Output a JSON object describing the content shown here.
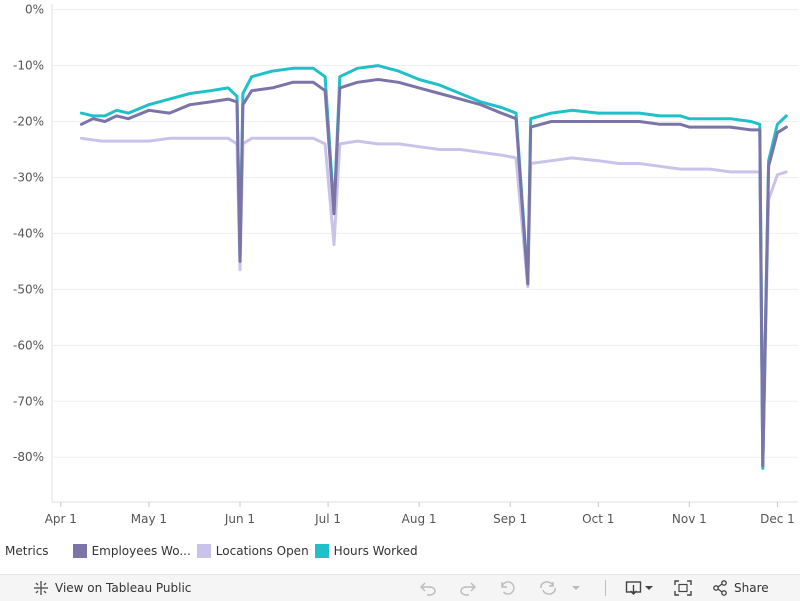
{
  "chart_data": {
    "type": "line",
    "title": "",
    "xlabel": "",
    "ylabel": "",
    "x_range": [
      "2020-03-29",
      "2020-12-08"
    ],
    "ylim": [
      -88,
      1
    ],
    "y_ticks": [
      {
        "value": 0,
        "label": "0%"
      },
      {
        "value": -10,
        "label": "-10%"
      },
      {
        "value": -20,
        "label": "-20%"
      },
      {
        "value": -30,
        "label": "-30%"
      },
      {
        "value": -40,
        "label": "-40%"
      },
      {
        "value": -50,
        "label": "-50%"
      },
      {
        "value": -60,
        "label": "-60%"
      },
      {
        "value": -70,
        "label": "-70%"
      },
      {
        "value": -80,
        "label": "-80%"
      }
    ],
    "x_ticks": [
      {
        "date": "2020-04-01",
        "label": "Apr 1"
      },
      {
        "date": "2020-05-01",
        "label": "May 1"
      },
      {
        "date": "2020-06-01",
        "label": "Jun 1"
      },
      {
        "date": "2020-07-01",
        "label": "Jul 1"
      },
      {
        "date": "2020-08-01",
        "label": "Aug 1"
      },
      {
        "date": "2020-09-01",
        "label": "Sep 1"
      },
      {
        "date": "2020-10-01",
        "label": "Oct 1"
      },
      {
        "date": "2020-11-01",
        "label": "Nov 1"
      },
      {
        "date": "2020-12-01",
        "label": "Dec 1"
      }
    ],
    "grid": true,
    "legend_title": "Metrics",
    "series": [
      {
        "name": "Employees Wo...",
        "color": "#7b74a8",
        "points": [
          [
            "2020-04-08",
            -20.5
          ],
          [
            "2020-04-12",
            -19.5
          ],
          [
            "2020-04-16",
            -20
          ],
          [
            "2020-04-20",
            -19
          ],
          [
            "2020-04-24",
            -19.5
          ],
          [
            "2020-05-01",
            -18
          ],
          [
            "2020-05-08",
            -18.5
          ],
          [
            "2020-05-15",
            -17
          ],
          [
            "2020-05-22",
            -16.5
          ],
          [
            "2020-05-28",
            -16
          ],
          [
            "2020-05-31",
            -16.5
          ],
          [
            "2020-06-01",
            -45
          ],
          [
            "2020-06-02",
            -17
          ],
          [
            "2020-06-05",
            -14.5
          ],
          [
            "2020-06-12",
            -14
          ],
          [
            "2020-06-19",
            -13
          ],
          [
            "2020-06-26",
            -13
          ],
          [
            "2020-06-30",
            -14.5
          ],
          [
            "2020-07-03",
            -36.5
          ],
          [
            "2020-07-05",
            -14
          ],
          [
            "2020-07-11",
            -13
          ],
          [
            "2020-07-18",
            -12.5
          ],
          [
            "2020-07-25",
            -13
          ],
          [
            "2020-08-01",
            -14
          ],
          [
            "2020-08-08",
            -15
          ],
          [
            "2020-08-15",
            -16
          ],
          [
            "2020-08-22",
            -17
          ],
          [
            "2020-08-29",
            -18.5
          ],
          [
            "2020-09-03",
            -19.5
          ],
          [
            "2020-09-07",
            -49
          ],
          [
            "2020-09-08",
            -21
          ],
          [
            "2020-09-15",
            -20
          ],
          [
            "2020-09-22",
            -20
          ],
          [
            "2020-10-01",
            -20
          ],
          [
            "2020-10-08",
            -20
          ],
          [
            "2020-10-15",
            -20
          ],
          [
            "2020-10-22",
            -20.5
          ],
          [
            "2020-10-29",
            -20.5
          ],
          [
            "2020-11-01",
            -21
          ],
          [
            "2020-11-08",
            -21
          ],
          [
            "2020-11-15",
            -21
          ],
          [
            "2020-11-22",
            -21.5
          ],
          [
            "2020-11-25",
            -21.5
          ],
          [
            "2020-11-26",
            -81.5
          ],
          [
            "2020-11-28",
            -28
          ],
          [
            "2020-12-01",
            -22
          ],
          [
            "2020-12-04",
            -21
          ]
        ]
      },
      {
        "name": "Locations Open",
        "color": "#c9c3ec",
        "points": [
          [
            "2020-04-08",
            -23
          ],
          [
            "2020-04-15",
            -23.5
          ],
          [
            "2020-04-22",
            -23.5
          ],
          [
            "2020-05-01",
            -23.5
          ],
          [
            "2020-05-08",
            -23
          ],
          [
            "2020-05-15",
            -23
          ],
          [
            "2020-05-22",
            -23
          ],
          [
            "2020-05-28",
            -23
          ],
          [
            "2020-05-31",
            -24
          ],
          [
            "2020-06-01",
            -46.5
          ],
          [
            "2020-06-02",
            -24
          ],
          [
            "2020-06-05",
            -23
          ],
          [
            "2020-06-12",
            -23
          ],
          [
            "2020-06-19",
            -23
          ],
          [
            "2020-06-26",
            -23
          ],
          [
            "2020-06-30",
            -24
          ],
          [
            "2020-07-03",
            -42
          ],
          [
            "2020-07-05",
            -24
          ],
          [
            "2020-07-11",
            -23.5
          ],
          [
            "2020-07-18",
            -24
          ],
          [
            "2020-07-25",
            -24
          ],
          [
            "2020-08-01",
            -24.5
          ],
          [
            "2020-08-08",
            -25
          ],
          [
            "2020-08-15",
            -25
          ],
          [
            "2020-08-22",
            -25.5
          ],
          [
            "2020-08-29",
            -26
          ],
          [
            "2020-09-03",
            -26.5
          ],
          [
            "2020-09-07",
            -49.5
          ],
          [
            "2020-09-08",
            -27.5
          ],
          [
            "2020-09-15",
            -27
          ],
          [
            "2020-09-22",
            -26.5
          ],
          [
            "2020-10-01",
            -27
          ],
          [
            "2020-10-08",
            -27.5
          ],
          [
            "2020-10-15",
            -27.5
          ],
          [
            "2020-10-22",
            -28
          ],
          [
            "2020-10-29",
            -28.5
          ],
          [
            "2020-11-01",
            -28.5
          ],
          [
            "2020-11-08",
            -28.5
          ],
          [
            "2020-11-15",
            -29
          ],
          [
            "2020-11-22",
            -29
          ],
          [
            "2020-11-25",
            -29
          ],
          [
            "2020-11-26",
            -81.5
          ],
          [
            "2020-11-28",
            -34
          ],
          [
            "2020-12-01",
            -29.5
          ],
          [
            "2020-12-04",
            -29
          ]
        ]
      },
      {
        "name": "Hours Worked",
        "color": "#1fc0c8",
        "points": [
          [
            "2020-04-08",
            -18.5
          ],
          [
            "2020-04-12",
            -19
          ],
          [
            "2020-04-16",
            -19
          ],
          [
            "2020-04-20",
            -18
          ],
          [
            "2020-04-24",
            -18.5
          ],
          [
            "2020-05-01",
            -17
          ],
          [
            "2020-05-08",
            -16
          ],
          [
            "2020-05-15",
            -15
          ],
          [
            "2020-05-22",
            -14.5
          ],
          [
            "2020-05-28",
            -14
          ],
          [
            "2020-05-31",
            -15.5
          ],
          [
            "2020-06-01",
            -44
          ],
          [
            "2020-06-02",
            -15
          ],
          [
            "2020-06-05",
            -12
          ],
          [
            "2020-06-12",
            -11
          ],
          [
            "2020-06-19",
            -10.5
          ],
          [
            "2020-06-26",
            -10.5
          ],
          [
            "2020-06-30",
            -12
          ],
          [
            "2020-07-03",
            -36
          ],
          [
            "2020-07-05",
            -12
          ],
          [
            "2020-07-11",
            -10.5
          ],
          [
            "2020-07-18",
            -10
          ],
          [
            "2020-07-25",
            -11
          ],
          [
            "2020-08-01",
            -12.5
          ],
          [
            "2020-08-08",
            -13.5
          ],
          [
            "2020-08-15",
            -15
          ],
          [
            "2020-08-22",
            -16.5
          ],
          [
            "2020-08-29",
            -17.5
          ],
          [
            "2020-09-03",
            -18.5
          ],
          [
            "2020-09-07",
            -48.5
          ],
          [
            "2020-09-08",
            -19.5
          ],
          [
            "2020-09-15",
            -18.5
          ],
          [
            "2020-09-22",
            -18
          ],
          [
            "2020-10-01",
            -18.5
          ],
          [
            "2020-10-08",
            -18.5
          ],
          [
            "2020-10-15",
            -18.5
          ],
          [
            "2020-10-22",
            -19
          ],
          [
            "2020-10-29",
            -19
          ],
          [
            "2020-11-01",
            -19.5
          ],
          [
            "2020-11-08",
            -19.5
          ],
          [
            "2020-11-15",
            -19.5
          ],
          [
            "2020-11-22",
            -20
          ],
          [
            "2020-11-25",
            -20.5
          ],
          [
            "2020-11-26",
            -82
          ],
          [
            "2020-11-28",
            -27
          ],
          [
            "2020-12-01",
            -20.5
          ],
          [
            "2020-12-04",
            -19
          ]
        ]
      }
    ]
  },
  "legend": {
    "title": "Metrics",
    "items": [
      {
        "label": "Employees Wo...",
        "color": "#7b74a8"
      },
      {
        "label": "Locations Open",
        "color": "#c9c3ec"
      },
      {
        "label": "Hours Worked",
        "color": "#1fc0c8"
      }
    ]
  },
  "footer": {
    "view_label": "View on Tableau Public",
    "share_label": "Share"
  }
}
